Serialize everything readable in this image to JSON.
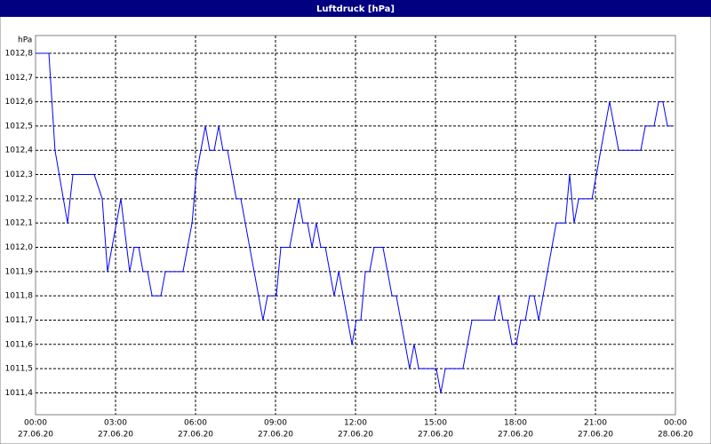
{
  "chart_data": {
    "type": "line",
    "title": "Luftdruck [hPa]",
    "y_label": "hPa",
    "x": [
      0,
      0.5,
      0.73,
      1.2,
      1.4,
      2.2,
      2.5,
      2.7,
      3.2,
      3.53,
      3.7,
      3.87,
      4.03,
      4.2,
      4.37,
      4.7,
      4.87,
      5.53,
      5.87,
      6.03,
      6.37,
      6.53,
      6.7,
      6.87,
      7.03,
      7.2,
      7.53,
      7.7,
      8.53,
      8.7,
      9.03,
      9.2,
      9.53,
      9.87,
      10.03,
      10.2,
      10.37,
      10.53,
      10.7,
      10.87,
      11.2,
      11.37,
      11.87,
      12.03,
      12.2,
      12.37,
      12.53,
      12.7,
      13.03,
      13.37,
      13.53,
      14.03,
      14.2,
      14.37,
      15.03,
      15.2,
      15.37,
      16.03,
      16.37,
      17.2,
      17.37,
      17.53,
      17.7,
      17.87,
      18.03,
      18.2,
      18.37,
      18.53,
      18.7,
      18.87,
      19.53,
      19.87,
      20.03,
      20.2,
      20.37,
      20.87,
      21.53,
      21.87,
      22.7,
      22.87,
      23.2,
      23.37,
      23.53,
      23.7,
      23.87
    ],
    "series": [
      {
        "name": "Luftdruck",
        "color": "#0000ff",
        "values": [
          1012.8,
          1012.8,
          1012.4,
          1012.1,
          1012.3,
          1012.3,
          1012.2,
          1011.9,
          1012.2,
          1011.9,
          1012.0,
          1012.0,
          1011.9,
          1011.9,
          1011.8,
          1011.8,
          1011.9,
          1011.9,
          1012.1,
          1012.3,
          1012.5,
          1012.4,
          1012.4,
          1012.5,
          1012.4,
          1012.4,
          1012.2,
          1012.2,
          1011.7,
          1011.8,
          1011.8,
          1012.0,
          1012.0,
          1012.2,
          1012.1,
          1012.1,
          1012.0,
          1012.1,
          1012.0,
          1012.0,
          1011.8,
          1011.9,
          1011.6,
          1011.7,
          1011.7,
          1011.9,
          1011.9,
          1012.0,
          1012.0,
          1011.8,
          1011.8,
          1011.5,
          1011.6,
          1011.5,
          1011.5,
          1011.4,
          1011.5,
          1011.5,
          1011.7,
          1011.7,
          1011.8,
          1011.7,
          1011.7,
          1011.6,
          1011.6,
          1011.7,
          1011.7,
          1011.8,
          1011.8,
          1011.7,
          1012.1,
          1012.1,
          1012.3,
          1012.1,
          1012.2,
          1012.2,
          1012.6,
          1012.4,
          1012.4,
          1012.5,
          1012.5,
          1012.6,
          1012.6,
          1012.5,
          1012.5
        ]
      }
    ],
    "xlim": [
      0,
      24
    ],
    "ylim": [
      1011.31,
      1012.873
    ],
    "xticks": [
      {
        "value": 0,
        "label": "00:00"
      },
      {
        "value": 3,
        "label": "03:00"
      },
      {
        "value": 6,
        "label": "06:00"
      },
      {
        "value": 9,
        "label": "09:00"
      },
      {
        "value": 12,
        "label": "12:00"
      },
      {
        "value": 15,
        "label": "15:00"
      },
      {
        "value": 18,
        "label": "18:00"
      },
      {
        "value": 21,
        "label": "21:00"
      },
      {
        "value": 24,
        "label": "00:00"
      }
    ],
    "xtick_dates": [
      "27.06.20",
      "27.06.20",
      "27.06.20",
      "27.06.20",
      "27.06.20",
      "27.06.20",
      "27.06.20",
      "27.06.20",
      "28.06.20"
    ],
    "yticks": [
      {
        "value": 1011.4,
        "label": "1011,4"
      },
      {
        "value": 1011.5,
        "label": "1011,5"
      },
      {
        "value": 1011.6,
        "label": "1011,6"
      },
      {
        "value": 1011.7,
        "label": "1011,7"
      },
      {
        "value": 1011.8,
        "label": "1011,8"
      },
      {
        "value": 1011.9,
        "label": "1011,9"
      },
      {
        "value": 1012.0,
        "label": "1012,0"
      },
      {
        "value": 1012.1,
        "label": "1012,1"
      },
      {
        "value": 1012.2,
        "label": "1012,2"
      },
      {
        "value": 1012.3,
        "label": "1012,3"
      },
      {
        "value": 1012.4,
        "label": "1012,4"
      },
      {
        "value": 1012.5,
        "label": "1012,5"
      },
      {
        "value": 1012.6,
        "label": "1012,6"
      },
      {
        "value": 1012.7,
        "label": "1012,7"
      },
      {
        "value": 1012.8,
        "label": "1012,8"
      }
    ],
    "grid": true
  }
}
